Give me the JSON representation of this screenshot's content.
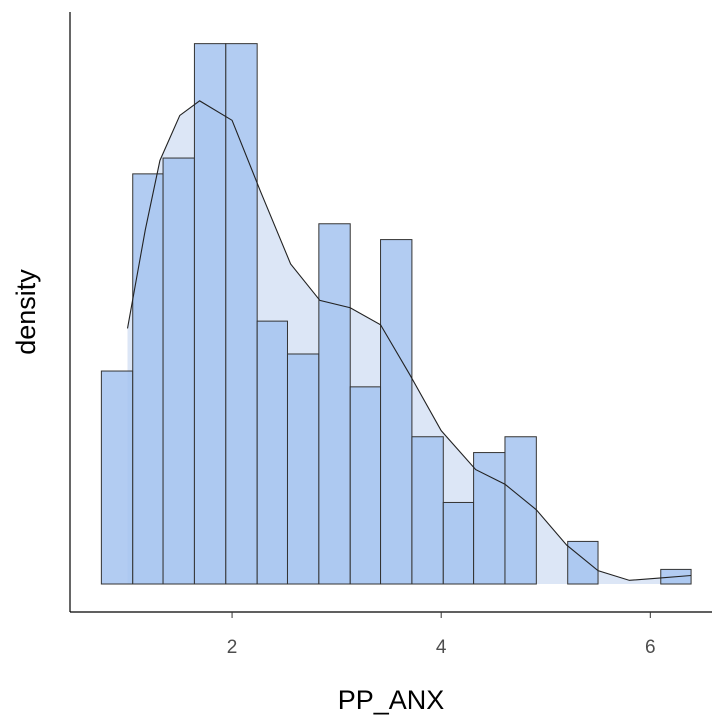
{
  "chart_data": {
    "type": "histogram",
    "x_label": "PP_ANX",
    "y_label": "density",
    "bins": [
      0.75,
      1.05,
      1.34,
      1.64,
      1.94,
      2.24,
      2.53,
      2.83,
      3.13,
      3.42,
      3.72,
      4.02,
      4.31,
      4.61,
      4.91,
      5.21,
      5.5,
      5.8,
      6.1,
      6.39
    ],
    "values": [
      0.175,
      0.337,
      0.35,
      0.444,
      0.444,
      0.216,
      0.189,
      0.296,
      0.162,
      0.283,
      0.121,
      0.067,
      0.108,
      0.121,
      0,
      0.035,
      0,
      0,
      0.012
    ],
    "color": "#a4c3f0",
    "density": {
      "color": "#dce6f6",
      "x": [
        1.0,
        1.17,
        1.31,
        1.5,
        1.69,
        2.0,
        2.27,
        2.56,
        2.84,
        3.13,
        3.42,
        3.7,
        4.0,
        4.33,
        4.61,
        4.91,
        5.2,
        5.5,
        5.8,
        6.1,
        6.39
      ],
      "values": [
        0.21,
        0.291,
        0.348,
        0.385,
        0.397,
        0.381,
        0.323,
        0.263,
        0.233,
        0.227,
        0.213,
        0.172,
        0.126,
        0.094,
        0.082,
        0.061,
        0.032,
        0.011,
        0.003,
        0.005,
        0.007
      ]
    },
    "xlim": [
      0.45,
      6.59
    ],
    "ylim": [
      -0.023,
      0.47
    ],
    "xticks": [
      2,
      4,
      6
    ]
  }
}
